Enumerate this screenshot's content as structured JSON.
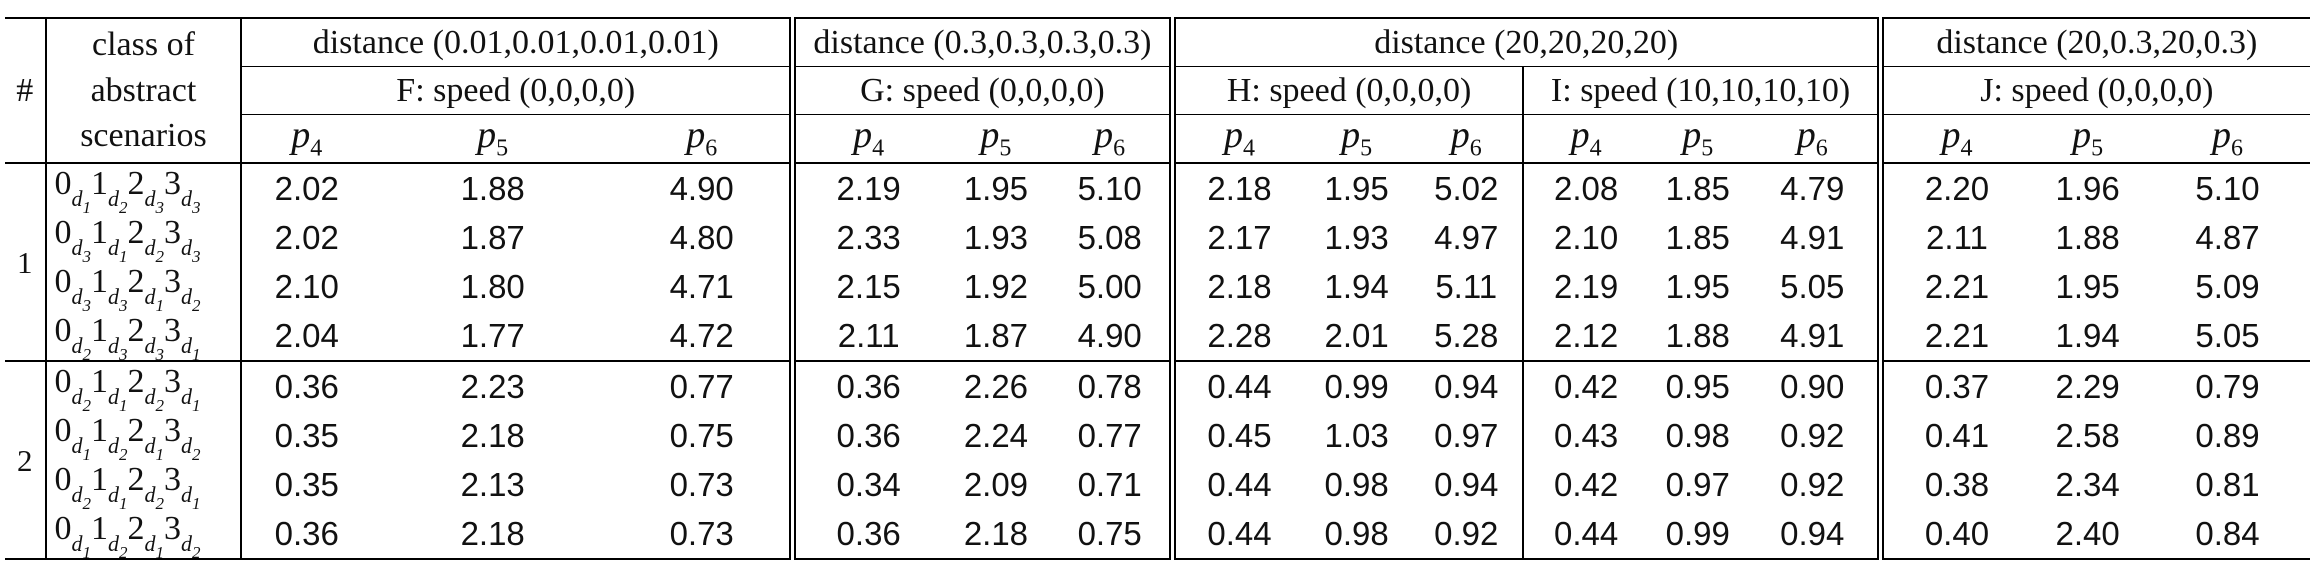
{
  "header": {
    "hash": "#",
    "class_label": [
      "class of",
      "abstract",
      "scenarios"
    ],
    "distances": [
      "distance (0.01,0.01,0.01,0.01)",
      "distance (0.3,0.3,0.3,0.3)",
      "distance (20,20,20,20)",
      "distance (20,0.3,20,0.3)"
    ],
    "speeds": [
      "F: speed (0,0,0,0)",
      "G: speed (0,0,0,0)",
      "H: speed (0,0,0,0)",
      "I: speed (10,10,10,10)",
      "J: speed (0,0,0,0)"
    ],
    "p_base": "p",
    "p_subs": [
      "4",
      "5",
      "6"
    ]
  },
  "groups": [
    {
      "id": "1",
      "rows": [
        {
          "scenario": [
            [
              "0",
              "d",
              "1"
            ],
            [
              "1",
              "d",
              "2"
            ],
            [
              "2",
              "d",
              "3"
            ],
            [
              "3",
              "d",
              "3"
            ]
          ],
          "values": [
            "2.02",
            "1.88",
            "4.90",
            "2.19",
            "1.95",
            "5.10",
            "2.18",
            "1.95",
            "5.02",
            "2.08",
            "1.85",
            "4.79",
            "2.20",
            "1.96",
            "5.10"
          ]
        },
        {
          "scenario": [
            [
              "0",
              "d",
              "3"
            ],
            [
              "1",
              "d",
              "1"
            ],
            [
              "2",
              "d",
              "2"
            ],
            [
              "3",
              "d",
              "3"
            ]
          ],
          "values": [
            "2.02",
            "1.87",
            "4.80",
            "2.33",
            "1.93",
            "5.08",
            "2.17",
            "1.93",
            "4.97",
            "2.10",
            "1.85",
            "4.91",
            "2.11",
            "1.88",
            "4.87"
          ]
        },
        {
          "scenario": [
            [
              "0",
              "d",
              "3"
            ],
            [
              "1",
              "d",
              "3"
            ],
            [
              "2",
              "d",
              "1"
            ],
            [
              "3",
              "d",
              "2"
            ]
          ],
          "values": [
            "2.10",
            "1.80",
            "4.71",
            "2.15",
            "1.92",
            "5.00",
            "2.18",
            "1.94",
            "5.11",
            "2.19",
            "1.95",
            "5.05",
            "2.21",
            "1.95",
            "5.09"
          ]
        },
        {
          "scenario": [
            [
              "0",
              "d",
              "2"
            ],
            [
              "1",
              "d",
              "3"
            ],
            [
              "2",
              "d",
              "3"
            ],
            [
              "3",
              "d",
              "1"
            ]
          ],
          "values": [
            "2.04",
            "1.77",
            "4.72",
            "2.11",
            "1.87",
            "4.90",
            "2.28",
            "2.01",
            "5.28",
            "2.12",
            "1.88",
            "4.91",
            "2.21",
            "1.94",
            "5.05"
          ]
        }
      ]
    },
    {
      "id": "2",
      "rows": [
        {
          "scenario": [
            [
              "0",
              "d",
              "2"
            ],
            [
              "1",
              "d",
              "1"
            ],
            [
              "2",
              "d",
              "2"
            ],
            [
              "3",
              "d",
              "1"
            ]
          ],
          "values": [
            "0.36",
            "2.23",
            "0.77",
            "0.36",
            "2.26",
            "0.78",
            "0.44",
            "0.99",
            "0.94",
            "0.42",
            "0.95",
            "0.90",
            "0.37",
            "2.29",
            "0.79"
          ]
        },
        {
          "scenario": [
            [
              "0",
              "d",
              "1"
            ],
            [
              "1",
              "d",
              "2"
            ],
            [
              "2",
              "d",
              "1"
            ],
            [
              "3",
              "d",
              "2"
            ]
          ],
          "values": [
            "0.35",
            "2.18",
            "0.75",
            "0.36",
            "2.24",
            "0.77",
            "0.45",
            "1.03",
            "0.97",
            "0.43",
            "0.98",
            "0.92",
            "0.41",
            "2.58",
            "0.89"
          ]
        },
        {
          "scenario": [
            [
              "0",
              "d",
              "2"
            ],
            [
              "1",
              "d",
              "1"
            ],
            [
              "2",
              "d",
              "2"
            ],
            [
              "3",
              "d",
              "1"
            ]
          ],
          "values": [
            "0.35",
            "2.13",
            "0.73",
            "0.34",
            "2.09",
            "0.71",
            "0.44",
            "0.98",
            "0.94",
            "0.42",
            "0.97",
            "0.92",
            "0.38",
            "2.34",
            "0.81"
          ]
        },
        {
          "scenario": [
            [
              "0",
              "d",
              "1"
            ],
            [
              "1",
              "d",
              "2"
            ],
            [
              "2",
              "d",
              "1"
            ],
            [
              "3",
              "d",
              "2"
            ]
          ],
          "values": [
            "0.36",
            "2.18",
            "0.73",
            "0.36",
            "2.18",
            "0.75",
            "0.44",
            "0.98",
            "0.92",
            "0.44",
            "0.99",
            "0.94",
            "0.40",
            "2.40",
            "0.84"
          ]
        }
      ]
    }
  ]
}
